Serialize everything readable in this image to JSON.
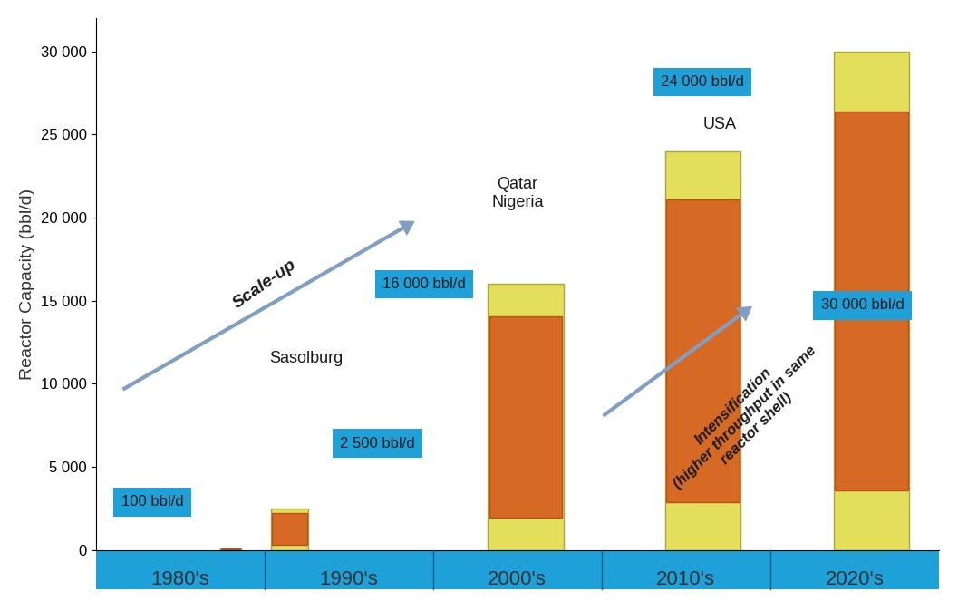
{
  "chart_data": {
    "type": "bar",
    "y_label": "Reactor Capacity (bbl/d)",
    "categories": [
      "1980's",
      "1990's",
      "2000's",
      "2010's",
      "2020's"
    ],
    "values": [
      100,
      2500,
      16000,
      24000,
      30000
    ],
    "value_labels": [
      "100 bbl/d",
      "2 500 bbl/d",
      "16 000 bbl/d",
      "24 000 bbl/d",
      "30 000 bbl/d"
    ],
    "locations": [
      null,
      "Sasolburg",
      "Qatar\nNigeria",
      "USA",
      null
    ],
    "annotations": [
      "Scale-up",
      "Intensification\n(higher throughput in same\nreactor shell)"
    ],
    "color": "#e4df5a",
    "data_labels": true,
    "ylim": [
      0,
      32000
    ],
    "yticks": [
      0,
      {
        "value": 5000,
        "label": "5 000"
      },
      {
        "value": 10000,
        "label": "10 000"
      },
      {
        "value": 15000,
        "label": "15 000"
      },
      {
        "value": 20000,
        "label": "20 000"
      },
      {
        "value": 25000,
        "label": "25 000"
      },
      {
        "value": 30000,
        "label": "30 000"
      }
    ],
    "grid": false
  }
}
